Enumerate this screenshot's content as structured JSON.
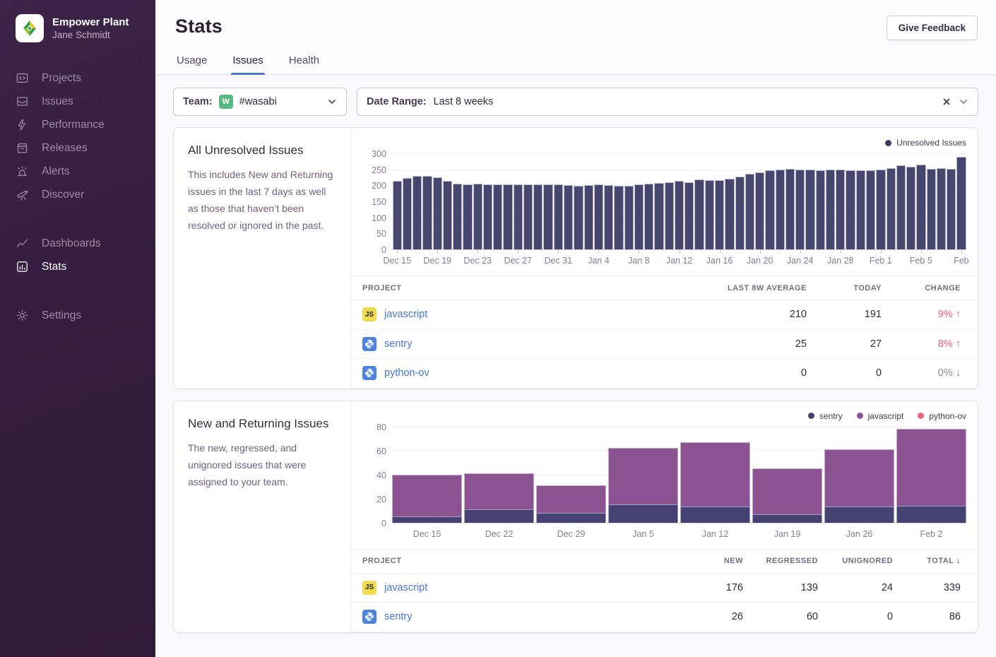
{
  "sidebar": {
    "org_name": "Empower Plant",
    "user_name": "Jane Schmidt",
    "sections": [
      {
        "items": [
          {
            "label": "Projects",
            "icon": "projects-icon"
          },
          {
            "label": "Issues",
            "icon": "issues-icon"
          },
          {
            "label": "Performance",
            "icon": "performance-icon"
          },
          {
            "label": "Releases",
            "icon": "releases-icon"
          },
          {
            "label": "Alerts",
            "icon": "alerts-icon"
          },
          {
            "label": "Discover",
            "icon": "discover-icon"
          }
        ]
      },
      {
        "items": [
          {
            "label": "Dashboards",
            "icon": "dashboards-icon"
          },
          {
            "label": "Stats",
            "icon": "stats-icon",
            "active": true
          }
        ]
      },
      {
        "items": [
          {
            "label": "Settings",
            "icon": "settings-icon"
          }
        ]
      }
    ]
  },
  "header": {
    "title": "Stats",
    "feedback_button": "Give Feedback"
  },
  "tabs": [
    {
      "label": "Usage",
      "active": false
    },
    {
      "label": "Issues",
      "active": true
    },
    {
      "label": "Health",
      "active": false
    }
  ],
  "filters": {
    "team_label": "Team:",
    "team_avatar_initial": "W",
    "team_value": "#wasabi",
    "range_label": "Date Range:",
    "range_value": "Last 8 weeks"
  },
  "panel_unresolved": {
    "title": "All Unresolved Issues",
    "description": "This includes New and Returning issues in the last 7 days as well as those that haven’t been resolved or ignored in the past.",
    "table": {
      "headers": [
        "PROJECT",
        "LAST 8W AVERAGE",
        "TODAY",
        "CHANGE"
      ],
      "rows": [
        {
          "icon": "js",
          "project": "javascript",
          "last_8w_average": "210",
          "today": "191",
          "change": "9%",
          "trend": "up"
        },
        {
          "icon": "python",
          "project": "sentry",
          "last_8w_average": "25",
          "today": "27",
          "change": "8%",
          "trend": "up"
        },
        {
          "icon": "python",
          "project": "python-ov",
          "last_8w_average": "0",
          "today": "0",
          "change": "0%",
          "trend": "down"
        }
      ]
    }
  },
  "panel_new_returning": {
    "title": "New and Returning Issues",
    "description": "The new, regressed, and unignored issues that were assigned to your team.",
    "table": {
      "headers": [
        "PROJECT",
        "NEW",
        "REGRESSED",
        "UNIGNORED",
        "TOTAL"
      ],
      "sorted_column": "TOTAL",
      "sort_direction": "desc",
      "rows": [
        {
          "icon": "js",
          "project": "javascript",
          "new": "176",
          "regressed": "139",
          "unignored": "24",
          "total": "339"
        },
        {
          "icon": "python",
          "project": "sentry",
          "new": "26",
          "regressed": "60",
          "unignored": "0",
          "total": "86"
        }
      ]
    }
  },
  "chart_data": [
    {
      "type": "bar",
      "title": "All Unresolved Issues",
      "legend": [
        {
          "label": "Unresolved Issues",
          "color": "#3f3b63"
        }
      ],
      "legend_position": "top-right",
      "ylim": [
        0,
        300
      ],
      "yticks": [
        0,
        50,
        100,
        150,
        200,
        250,
        300
      ],
      "x_tick_labels": [
        "Dec 15",
        "Dec 19",
        "Dec 23",
        "Dec 27",
        "Dec 31",
        "Jan 4",
        "Jan 8",
        "Jan 12",
        "Jan 16",
        "Jan 20",
        "Jan 24",
        "Jan 28",
        "Feb 1",
        "Feb 5",
        "Feb"
      ],
      "tick_every": 4,
      "bar_color": "#47466f",
      "values": [
        215,
        222,
        230,
        229,
        226,
        214,
        206,
        202,
        205,
        204,
        204,
        203,
        203,
        204,
        203,
        203,
        203,
        201,
        198,
        200,
        204,
        201,
        199,
        198,
        204,
        206,
        207,
        210,
        213,
        210,
        218,
        217,
        217,
        221,
        228,
        235,
        240,
        246,
        249,
        252,
        250,
        250,
        248,
        250,
        250,
        246,
        248,
        248,
        249,
        254,
        262,
        258,
        265,
        252,
        253,
        251,
        290
      ]
    },
    {
      "type": "bar-stacked",
      "title": "New and Returning Issues",
      "categories": [
        "Dec 15",
        "Dec 22",
        "Dec 29",
        "Jan 5",
        "Jan 12",
        "Jan 19",
        "Jan 26",
        "Feb 2"
      ],
      "ylim": [
        0,
        80
      ],
      "yticks": [
        0,
        20,
        40,
        60,
        80
      ],
      "legend_position": "top-right",
      "series": [
        {
          "name": "sentry",
          "color": "#454273",
          "values": [
            5,
            11,
            8,
            15,
            13,
            7,
            13,
            14
          ]
        },
        {
          "name": "javascript",
          "color": "#8c5393",
          "values": [
            35,
            30,
            23,
            47,
            54,
            38,
            48,
            64
          ]
        },
        {
          "name": "python-ov",
          "color": "#e5647a",
          "values": [
            0,
            0,
            0,
            0,
            0,
            0,
            0,
            0
          ]
        }
      ]
    }
  ],
  "colors": {
    "accent_blue": "#4674d8",
    "bar_navy": "#47466f",
    "series_sentry": "#454273",
    "series_javascript": "#8c5393",
    "series_python_ov": "#e5647a",
    "change_up_red": "#ef5f73",
    "change_down_gray": "#8b8599",
    "sidebar_bg": "#35203e",
    "team_avatar_green": "#57b884",
    "js_badge_yellow": "#f0db4f",
    "python_badge_blue": "#4c82e0"
  }
}
